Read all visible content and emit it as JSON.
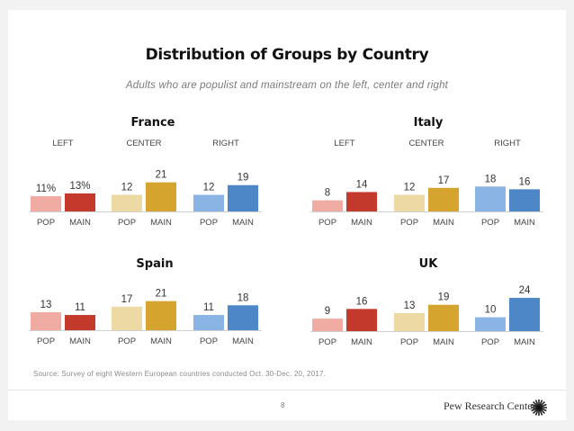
{
  "slide": {
    "title": "Distribution of Groups by Country",
    "subtitle": "Adults who are populist and mainstream on the left, center and right",
    "source": "Source: Survey of eight Western European countries conducted Oct. 30-Dec. 20, 2017.",
    "page_number": "8",
    "brand": "Pew Research Center",
    "brand_logo_icon": "pew-sunburst-icon"
  },
  "colors": {
    "left_pop": "#f0aba2",
    "left_main": "#c3392b",
    "center_pop": "#edd9a4",
    "center_main": "#d4a42e",
    "right_pop": "#8ab4e3",
    "right_main": "#4e87c7"
  },
  "chart_data": [
    {
      "type": "bar",
      "title": "France",
      "groups": [
        "LEFT",
        "CENTER",
        "RIGHT"
      ],
      "categories": [
        "POP",
        "MAIN"
      ],
      "series": [
        {
          "group": "LEFT",
          "values": [
            11,
            13
          ],
          "labels": [
            "11%",
            "13%"
          ]
        },
        {
          "group": "CENTER",
          "values": [
            12,
            21
          ],
          "labels": [
            "12",
            "21"
          ]
        },
        {
          "group": "RIGHT",
          "values": [
            12,
            19
          ],
          "labels": [
            "12",
            "19"
          ]
        }
      ],
      "unit": "%",
      "show_group_labels": true
    },
    {
      "type": "bar",
      "title": "Italy",
      "groups": [
        "LEFT",
        "CENTER",
        "RIGHT"
      ],
      "categories": [
        "POP",
        "MAIN"
      ],
      "series": [
        {
          "group": "LEFT",
          "values": [
            8,
            14
          ],
          "labels": [
            "8",
            "14"
          ]
        },
        {
          "group": "CENTER",
          "values": [
            12,
            17
          ],
          "labels": [
            "12",
            "17"
          ]
        },
        {
          "group": "RIGHT",
          "values": [
            18,
            16
          ],
          "labels": [
            "18",
            "16"
          ]
        }
      ],
      "unit": "%",
      "show_group_labels": true
    },
    {
      "type": "bar",
      "title": "Spain",
      "groups": [
        "LEFT",
        "CENTER",
        "RIGHT"
      ],
      "categories": [
        "POP",
        "MAIN"
      ],
      "series": [
        {
          "group": "LEFT",
          "values": [
            13,
            11
          ],
          "labels": [
            "13",
            "11"
          ]
        },
        {
          "group": "CENTER",
          "values": [
            17,
            21
          ],
          "labels": [
            "17",
            "21"
          ]
        },
        {
          "group": "RIGHT",
          "values": [
            11,
            18
          ],
          "labels": [
            "11",
            "18"
          ]
        }
      ],
      "unit": "%",
      "show_group_labels": false
    },
    {
      "type": "bar",
      "title": "UK",
      "groups": [
        "LEFT",
        "CENTER",
        "RIGHT"
      ],
      "categories": [
        "POP",
        "MAIN"
      ],
      "series": [
        {
          "group": "LEFT",
          "values": [
            9,
            16
          ],
          "labels": [
            "9",
            "16"
          ]
        },
        {
          "group": "CENTER",
          "values": [
            13,
            19
          ],
          "labels": [
            "13",
            "19"
          ]
        },
        {
          "group": "RIGHT",
          "values": [
            10,
            24
          ],
          "labels": [
            "10",
            "24"
          ]
        }
      ],
      "unit": "%",
      "show_group_labels": false
    }
  ]
}
